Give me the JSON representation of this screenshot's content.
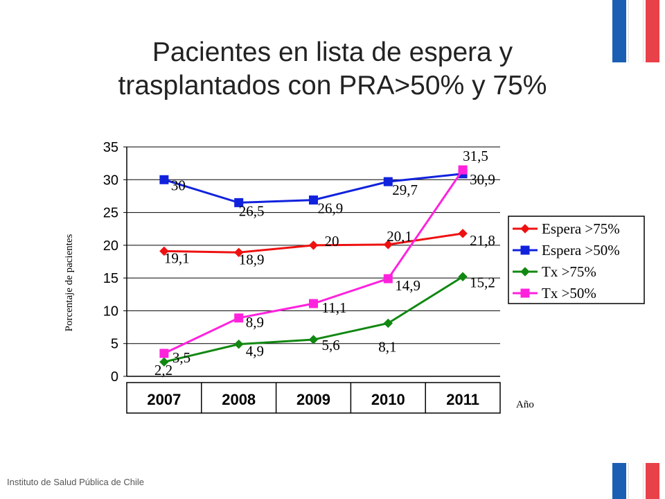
{
  "title": [
    "Pacientes en lista de espera y",
    "trasplantados con PRA>50% y 75%"
  ],
  "footer": "Instituto de Salud Pública de Chile",
  "chart_data": {
    "type": "line",
    "categories": [
      "2007",
      "2008",
      "2009",
      "2010",
      "2011"
    ],
    "ylabel": "Porcentaje de pacientes",
    "xlabel": "Año",
    "ylim": [
      0,
      35
    ],
    "yticks": [
      0,
      5,
      10,
      15,
      20,
      25,
      30,
      35
    ],
    "grid": true,
    "legend": "right",
    "series": [
      {
        "name": "Espera >75%",
        "values": [
          19.1,
          18.9,
          20,
          20.1,
          21.8
        ],
        "labels": [
          "19,1",
          "18,9",
          "20",
          "20,1",
          "21,8"
        ],
        "color": "#ee1111",
        "marker": "diamond"
      },
      {
        "name": "Espera >50%",
        "values": [
          30,
          26.5,
          26.9,
          29.7,
          30.9
        ],
        "labels": [
          "30",
          "26,5",
          "26,9",
          "29,7",
          "30,9"
        ],
        "color": "#1122dd",
        "marker": "square"
      },
      {
        "name": "Tx >75%",
        "values": [
          2.2,
          4.9,
          5.6,
          8.1,
          15.2
        ],
        "labels": [
          "2,2",
          "4,9",
          "5,6",
          "8,1",
          "15,2"
        ],
        "color": "#118811",
        "marker": "diamond"
      },
      {
        "name": "Tx >50%",
        "values": [
          3.5,
          8.9,
          11.1,
          14.9,
          31.5
        ],
        "labels": [
          "3,5",
          "8,9",
          "11,1",
          "14,9",
          "31,5"
        ],
        "color": "#ff22dd",
        "marker": "square"
      }
    ]
  }
}
